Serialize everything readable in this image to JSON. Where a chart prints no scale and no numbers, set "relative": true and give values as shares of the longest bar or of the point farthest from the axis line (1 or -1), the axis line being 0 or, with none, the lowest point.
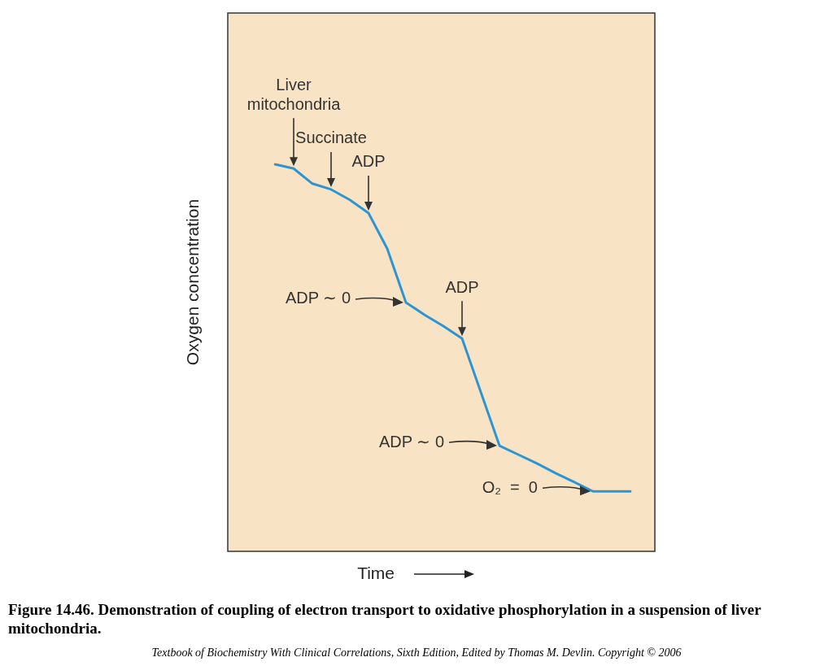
{
  "chart_data": {
    "type": "line",
    "title": "Figure 14.46.  Demonstration of coupling of electron transport to oxidative phosphorylation in a suspension of liver mitochondria.",
    "xlabel": "Time",
    "ylabel": "Oxygen concentration",
    "relative": true,
    "tick_labels": false,
    "categories": [
      null,
      null,
      null,
      null,
      null,
      null,
      null,
      null,
      null,
      null,
      null,
      null,
      null,
      null,
      null,
      null,
      null,
      null,
      null,
      null
    ],
    "series": [
      {
        "color": "#2e95d3",
        "values": [
          1,
          0.989,
          0.95,
          0.935,
          0.908,
          0.874,
          0.782,
          0.643,
          0.611,
          0.582,
          0.55,
          0.412,
          0.273,
          0.25,
          0.227,
          0.202,
          0.179,
          0.155,
          0.155,
          0.155
        ]
      }
    ],
    "annotations": [
      {
        "text": "Liver\nmitochondria",
        "y": 0.989
      },
      {
        "text": "Succinate",
        "y": 0.935
      },
      {
        "text": "ADP",
        "y": 0.874
      },
      {
        "text": "ADP",
        "y": 0.55
      },
      "ADP ∼ 0",
      "ADP ∼ 0",
      "O₂  =  0",
      "Textbook of Biochemistry With Clinical Correlations, Sixth Edition, Edited by Thomas M. Devlin. Copyright © 2006"
    ]
  }
}
